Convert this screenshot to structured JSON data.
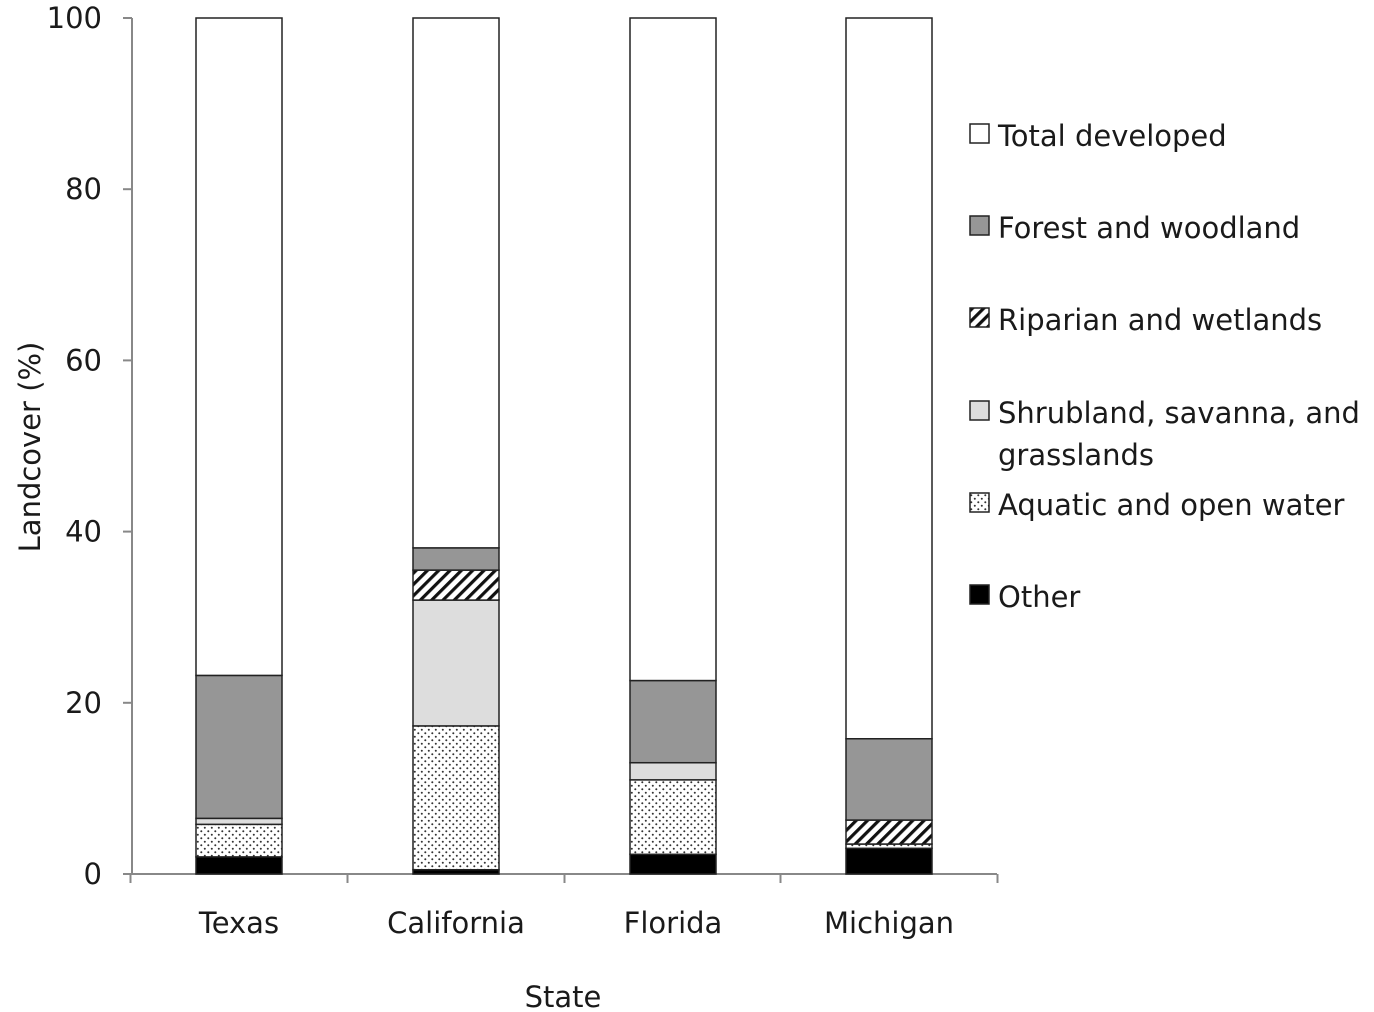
{
  "chart_data": {
    "type": "bar",
    "stacked": true,
    "categories": [
      "Texas",
      "California",
      "Florida",
      "Michigan"
    ],
    "xlabel": "State",
    "ylabel": "Landcover (%)",
    "ylim": [
      0,
      100
    ],
    "yticks": [
      0,
      20,
      40,
      60,
      80,
      100
    ],
    "grid": false,
    "legend_position": "right",
    "series": [
      {
        "name": "Other",
        "values": [
          2,
          0.5,
          2.3,
          3
        ],
        "fill": "#000000",
        "pattern": "solid"
      },
      {
        "name": "Aquatic and open water",
        "values": [
          3.8,
          16.8,
          8.7,
          0.5
        ],
        "fill": "#ffffff",
        "pattern": "dots"
      },
      {
        "name": "Shrubland, savanna, and grasslands",
        "values": [
          0.7,
          14.7,
          2,
          0
        ],
        "fill": "#dddddd",
        "pattern": "solid"
      },
      {
        "name": "Riparian and wetlands",
        "values": [
          0,
          3.5,
          0,
          2.8
        ],
        "fill": "#ffffff",
        "pattern": "hatch"
      },
      {
        "name": "Forest and woodland",
        "values": [
          16.7,
          2.6,
          9.6,
          9.5
        ],
        "fill": "#969696",
        "pattern": "solid"
      },
      {
        "name": "Total developed",
        "values": [
          76.8,
          61.9,
          77.4,
          84.2
        ],
        "fill": "#ffffff",
        "pattern": "solid"
      }
    ],
    "legend_order": [
      "Total developed",
      "Forest and woodland",
      "Riparian and wetlands",
      "Shrubland, savanna, and grasslands",
      "Aquatic and open water",
      "Other"
    ]
  }
}
